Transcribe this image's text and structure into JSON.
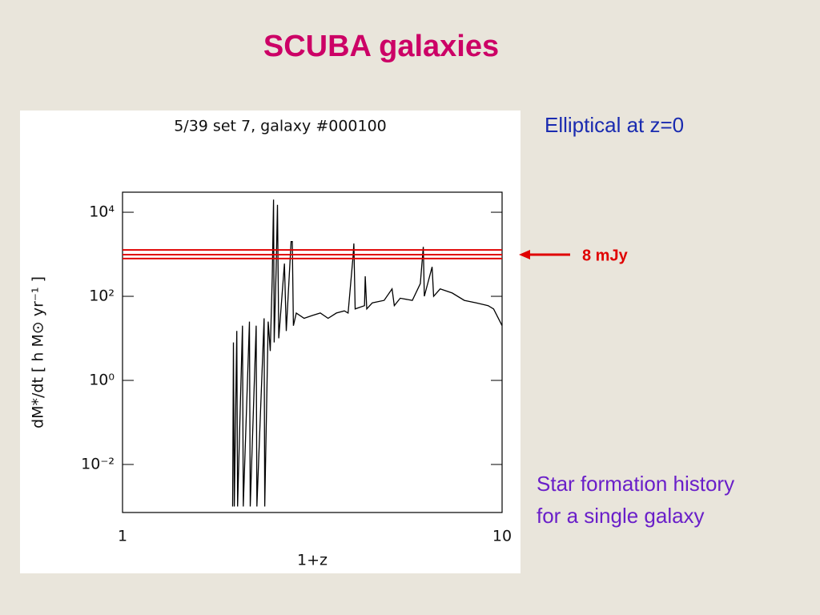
{
  "title": "SCUBA galaxies",
  "notes": [
    "Elliptical at z=0",
    "Star formation history",
    "for a single galaxy"
  ],
  "chart_data": {
    "type": "line",
    "title": "5/39 set 7,  galaxy #000100",
    "xlabel": "1+z",
    "ylabel": "dM*/dt  [ h M⊙ yr⁻¹ ]",
    "xscale": "log",
    "yscale": "log",
    "xlim": [
      1,
      10
    ],
    "ylim": [
      0.00072,
      30000
    ],
    "xticks": [
      1,
      10
    ],
    "yticks": [
      {
        "value": 0.01,
        "label": "10⁻²"
      },
      {
        "value": 1,
        "label": "10⁰"
      },
      {
        "value": 100,
        "label": "10²"
      },
      {
        "value": 10000,
        "label": "10⁴"
      }
    ],
    "x": [
      1.95,
      1.96,
      1.97,
      2.0,
      2.01,
      2.07,
      2.08,
      2.16,
      2.17,
      2.25,
      2.26,
      2.36,
      2.37,
      2.42,
      2.45,
      2.48,
      2.5,
      2.51,
      2.54,
      2.56,
      2.58,
      2.67,
      2.7,
      2.78,
      2.8,
      2.82,
      2.87,
      3.01,
      3.16,
      3.32,
      3.48,
      3.66,
      3.84,
      3.93,
      4.05,
      4.07,
      4.1,
      4.34,
      4.36,
      4.4,
      4.55,
      4.89,
      5.13,
      5.2,
      5.39,
      5.8,
      6.09,
      6.2,
      6.24,
      6.54,
      6.6,
      6.87,
      7.39,
      7.95,
      8.55,
      9.19,
      9.5,
      10
    ],
    "series": [
      {
        "name": "SFR",
        "color": "#000000",
        "values": [
          0.001,
          8,
          0.001,
          15,
          0.001,
          20,
          0.001,
          25,
          0.001,
          20,
          0.001,
          30,
          0.001,
          25,
          5,
          300,
          20000,
          8,
          500,
          15000,
          10,
          600,
          15,
          2000,
          2000,
          20,
          40,
          30,
          35,
          40,
          30,
          40,
          45,
          40,
          900,
          1800,
          50,
          60,
          300,
          50,
          70,
          80,
          150,
          60,
          90,
          80,
          200,
          1500,
          100,
          500,
          100,
          150,
          120,
          80,
          70,
          60,
          50,
          20
        ]
      }
    ],
    "reference_lines": [
      1270,
      980,
      790
    ],
    "reference_color": "#e00000",
    "reference_label": "8 mJy"
  }
}
